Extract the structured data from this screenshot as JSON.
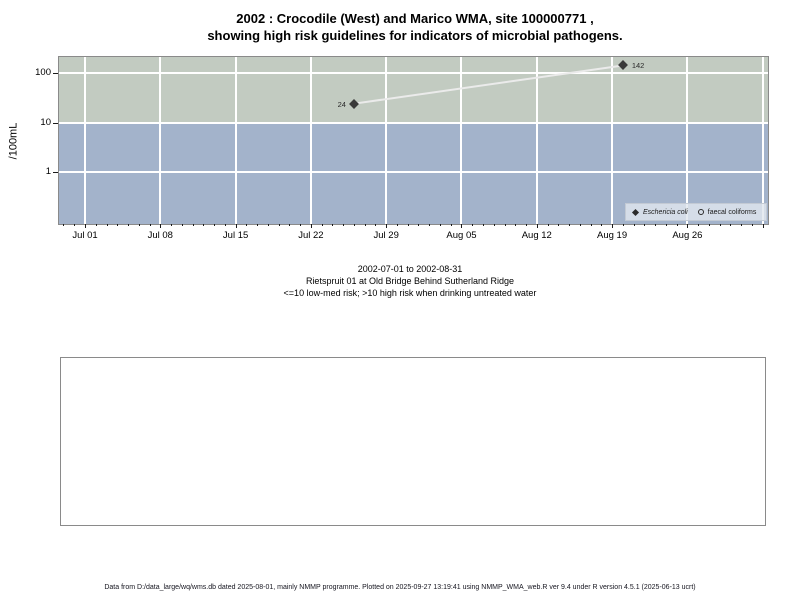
{
  "title": {
    "line1": "2002 : Crocodile (West) and Marico WMA, site 100000771 ,",
    "line2": "showing high risk guidelines for indicators of microbial pathogens."
  },
  "chart_data": {
    "type": "scatter",
    "title": "2002 : Crocodile (West) and Marico WMA, site 100000771 , showing high risk guidelines for indicators of microbial pathogens.",
    "xlabel": "",
    "ylabel": "/100mL",
    "y_scale": "log10",
    "y_ticks": [
      {
        "value": 100,
        "label": "100"
      },
      {
        "value": 10,
        "label": "10"
      },
      {
        "value": 1,
        "label": "1"
      }
    ],
    "x_range": {
      "start": "2002-07-01",
      "end": "2002-08-31"
    },
    "x_tick_labels": [
      "Jul 01",
      "Jul 08",
      "Jul 15",
      "Jul 22",
      "Jul 29",
      "Aug 05",
      "Aug 12",
      "Aug 19",
      "Aug 26"
    ],
    "risk_threshold": 10,
    "band_colors": {
      "high_risk": "#c2cbc1",
      "low_med_risk": "#a3b3cb"
    },
    "grid": "on",
    "legend_position": "bottom-right",
    "legend": [
      {
        "symbol": "diamond-filled",
        "label": "Eschericia coli"
      },
      {
        "symbol": "circle-open",
        "label": "faecal coliforms"
      }
    ],
    "series": [
      {
        "name": "Eschericia coli",
        "marker": "diamond-filled",
        "line_color": "#ebebeb",
        "points": [
          {
            "date": "2002-07-26",
            "value": 24,
            "label": "24",
            "label_side": "left"
          },
          {
            "date": "2002-08-20",
            "value": 142,
            "label": "142",
            "label_side": "right"
          }
        ]
      },
      {
        "name": "faecal coliforms",
        "marker": "circle-open",
        "points": []
      }
    ]
  },
  "subtitle": {
    "line1": "2002-07-01 to 2002-08-31",
    "line2": "Rietspruit 01 at Old Bridge Behind Sutherland Ridge",
    "line3": "<=10 low-med risk; >10 high risk when drinking untreated water"
  },
  "footer": {
    "text": "Data from D:/data_large/wq/wms.db dated 2025-08-01, mainly NMMP programme. Plotted on 2025-09-27 13:19:41 using NMMP_WMA_web.R ver 9.4 under R version 4.5.1 (2025-06-13 ucrt)"
  }
}
